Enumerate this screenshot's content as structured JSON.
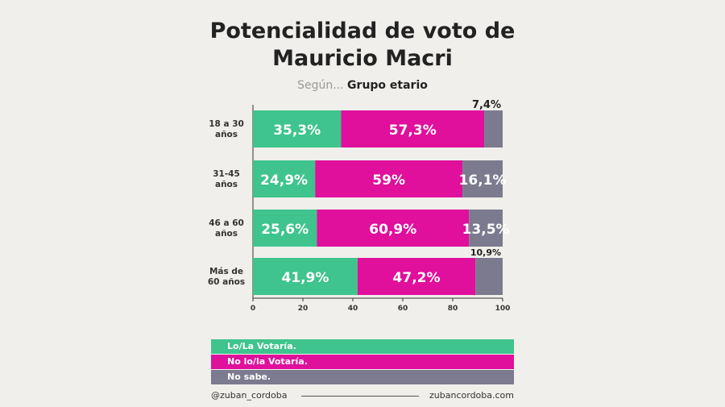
{
  "header": {
    "title_line1": "Potencialidad de voto de",
    "title_line2": "Mauricio Macri",
    "subtitle_prefix": "Según...",
    "subtitle_main": "Grupo etario"
  },
  "chart_data": {
    "type": "bar",
    "orientation": "horizontal",
    "stacked": true,
    "categories": [
      "18 a 30 años",
      "31-45 años",
      "46 a 60 años",
      "Más de 60 años"
    ],
    "category_lines": [
      [
        "18 a 30",
        "años"
      ],
      [
        "31-45",
        "años"
      ],
      [
        "46 a 60",
        "años"
      ],
      [
        "Más de",
        "60 años"
      ]
    ],
    "series": [
      {
        "name": "Lo/La Votaría.",
        "color": "#3ec48c",
        "values": [
          35.3,
          24.9,
          25.6,
          41.9
        ],
        "labels": [
          "35,3%",
          "24,9%",
          "25,6%",
          "41,9%"
        ]
      },
      {
        "name": "No lo/la Votaría.",
        "color": "#e00f9c",
        "values": [
          57.3,
          59,
          60.9,
          47.2
        ],
        "labels": [
          "57,3%",
          "59%",
          "60,9%",
          "47,2%"
        ]
      },
      {
        "name": "No sabe.",
        "color": "#7b7a8e",
        "values": [
          7.4,
          16.1,
          13.5,
          10.9
        ],
        "labels": [
          "7,4%",
          "16,1%",
          "13,5%",
          "10,9%"
        ]
      }
    ],
    "xlim": [
      0,
      100
    ],
    "xticks": [
      0,
      20,
      40,
      60,
      80,
      100
    ],
    "legend_position": "bottom"
  },
  "footer": {
    "handle": "@zuban_cordoba",
    "website": "zubancordoba.com"
  }
}
